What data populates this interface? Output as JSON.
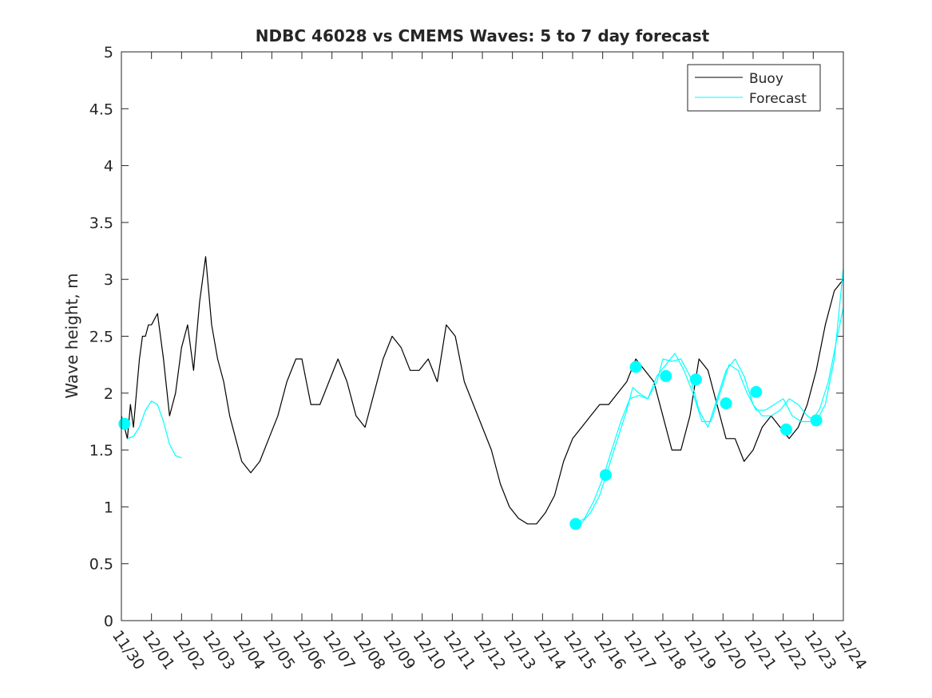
{
  "chart_data": {
    "type": "line",
    "title": "NDBC 46028 vs CMEMS Waves: 5 to 7 day forecast",
    "xlabel": "",
    "ylabel": "Wave height, m",
    "ylim": [
      0,
      5
    ],
    "xlim": [
      0,
      24
    ],
    "yticks": [
      0,
      0.5,
      1,
      1.5,
      2,
      2.5,
      3,
      3.5,
      4,
      4.5,
      5
    ],
    "ytick_labels": [
      "0",
      "0.5",
      "1",
      "1.5",
      "2",
      "2.5",
      "3",
      "3.5",
      "4",
      "4.5",
      "5"
    ],
    "xtick_labels": [
      "11/30",
      "12/01",
      "12/02",
      "12/03",
      "12/04",
      "12/05",
      "12/06",
      "12/07",
      "12/08",
      "12/09",
      "12/10",
      "12/11",
      "12/12",
      "12/13",
      "12/14",
      "12/15",
      "12/16",
      "12/17",
      "12/18",
      "12/19",
      "12/20",
      "12/21",
      "12/22",
      "12/23",
      "12/24"
    ],
    "legend": {
      "position": "top-right",
      "entries": [
        "Buoy",
        "Forecast"
      ]
    },
    "series": [
      {
        "name": "Buoy",
        "color": "#000000",
        "x": [
          0,
          0.1,
          0.2,
          0.3,
          0.4,
          0.5,
          0.6,
          0.7,
          0.8,
          0.9,
          1.0,
          1.2,
          1.4,
          1.6,
          1.8,
          2.0,
          2.2,
          2.4,
          2.6,
          2.8,
          3.0,
          3.2,
          3.4,
          3.6,
          3.8,
          4.0,
          4.3,
          4.6,
          4.9,
          5.2,
          5.5,
          5.8,
          6.0,
          6.3,
          6.6,
          6.9,
          7.2,
          7.5,
          7.8,
          8.1,
          8.4,
          8.7,
          9.0,
          9.3,
          9.6,
          9.9,
          10.2,
          10.5,
          10.8,
          11.1,
          11.4,
          11.7,
          12.0,
          12.3,
          12.6,
          12.9,
          13.2,
          13.5,
          13.8,
          14.1,
          14.4,
          14.7,
          15.0,
          15.3,
          15.6,
          15.9,
          16.2,
          16.5,
          16.8,
          17.1,
          17.4,
          17.7,
          18.0,
          18.3,
          18.6,
          18.9,
          19.2,
          19.5,
          19.8,
          20.1,
          20.4,
          20.7,
          21.0,
          21.3,
          21.6,
          21.9,
          22.2,
          22.5,
          22.8,
          23.1,
          23.4,
          23.7,
          24.0
        ],
        "values": [
          1.8,
          1.7,
          1.6,
          1.9,
          1.7,
          2.0,
          2.3,
          2.5,
          2.5,
          2.6,
          2.6,
          2.7,
          2.3,
          1.8,
          2.0,
          2.4,
          2.6,
          2.2,
          2.8,
          3.2,
          2.6,
          2.3,
          2.1,
          1.8,
          1.6,
          1.4,
          1.3,
          1.4,
          1.6,
          1.8,
          2.1,
          2.3,
          2.3,
          1.9,
          1.9,
          2.1,
          2.3,
          2.1,
          1.8,
          1.7,
          2.0,
          2.3,
          2.5,
          2.4,
          2.2,
          2.2,
          2.3,
          2.1,
          2.6,
          2.5,
          2.1,
          1.9,
          1.7,
          1.5,
          1.2,
          1.0,
          0.9,
          0.85,
          0.85,
          0.95,
          1.1,
          1.4,
          1.6,
          1.7,
          1.8,
          1.9,
          1.9,
          2.0,
          2.1,
          2.3,
          2.2,
          2.1,
          1.8,
          1.5,
          1.5,
          1.8,
          2.3,
          2.2,
          1.9,
          1.6,
          1.6,
          1.4,
          1.5,
          1.7,
          1.8,
          1.7,
          1.6,
          1.7,
          1.9,
          2.2,
          2.6,
          2.9,
          3.0
        ]
      },
      {
        "name": "Forecast",
        "color": "#00FFFF",
        "x": [
          0.2,
          0.4,
          0.6,
          0.8,
          1.0,
          1.2,
          1.4,
          1.6,
          1.8,
          2.0
        ],
        "values": [
          1.6,
          1.62,
          1.7,
          1.85,
          1.93,
          1.9,
          1.75,
          1.55,
          1.45,
          1.43
        ]
      },
      {
        "name": "Forecast-2",
        "color": "#00FFFF",
        "x": [
          15.0,
          15.3,
          15.6,
          15.9,
          16.2,
          16.5,
          16.8,
          17.0,
          17.2,
          17.5,
          17.8,
          18.0,
          18.3,
          18.6,
          18.9,
          19.2,
          19.5,
          19.8,
          20.1,
          20.4,
          20.7,
          21.0,
          21.3,
          21.6,
          21.9,
          22.2,
          22.5,
          22.8,
          23.1,
          23.4,
          23.7,
          24.0
        ],
        "values": [
          0.85,
          0.86,
          0.95,
          1.1,
          1.35,
          1.6,
          1.85,
          2.05,
          2.0,
          1.95,
          2.1,
          2.3,
          2.28,
          2.3,
          2.15,
          1.85,
          1.7,
          1.95,
          2.2,
          2.3,
          2.15,
          1.9,
          1.8,
          1.8,
          1.85,
          1.95,
          1.9,
          1.8,
          1.75,
          1.9,
          2.3,
          3.1
        ]
      },
      {
        "name": "Forecast-3",
        "color": "#00FFFF",
        "x": [
          15.1,
          15.4,
          15.7,
          16.0,
          16.3,
          16.6,
          16.9,
          17.2,
          17.5,
          17.8,
          18.1,
          18.4,
          18.7,
          19.0,
          19.3,
          19.6,
          19.9,
          20.2,
          20.5,
          20.8,
          21.1,
          21.4,
          21.7,
          22.0,
          22.3,
          22.6,
          22.9,
          23.2,
          23.5,
          23.8,
          24.0
        ],
        "values": [
          0.85,
          0.9,
          1.05,
          1.25,
          1.5,
          1.75,
          1.95,
          1.98,
          1.95,
          2.15,
          2.25,
          2.35,
          2.2,
          2.0,
          1.75,
          1.75,
          2.0,
          2.25,
          2.2,
          2.0,
          1.85,
          1.85,
          1.9,
          1.95,
          1.8,
          1.75,
          1.75,
          1.85,
          2.1,
          2.5,
          2.75
        ]
      }
    ],
    "markers": {
      "name": "Forecast markers",
      "color": "#00FFFF",
      "x": [
        0.1,
        15.1,
        16.1,
        17.1,
        18.1,
        19.1,
        20.1,
        21.1,
        22.1,
        23.1
      ],
      "values": [
        1.73,
        0.85,
        1.28,
        2.23,
        2.15,
        2.12,
        1.91,
        2.01,
        1.68,
        1.76
      ]
    }
  }
}
